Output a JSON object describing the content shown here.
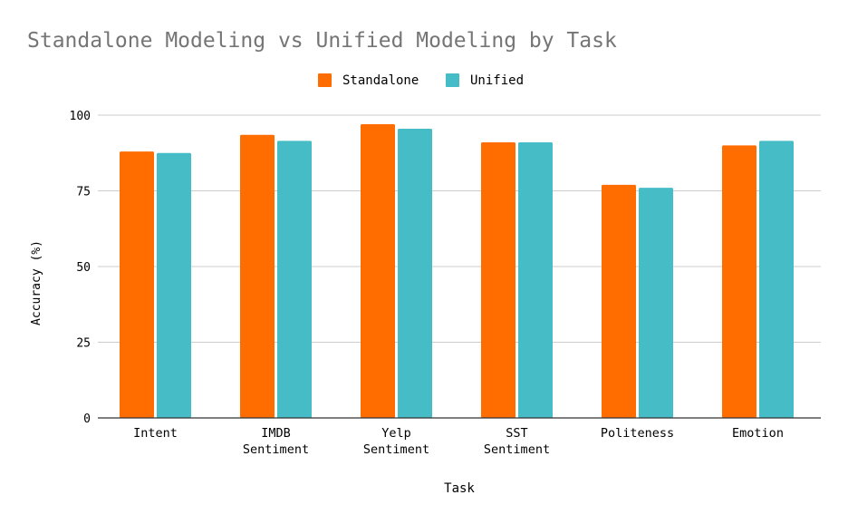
{
  "chart_data": {
    "type": "bar",
    "title": "Standalone Modeling vs Unified Modeling by Task",
    "xlabel": "Task",
    "ylabel": "Accuracy (%)",
    "ylim": [
      0,
      100
    ],
    "yticks": [
      "0",
      "25",
      "50",
      "75",
      "100"
    ],
    "grid": true,
    "legend_position": "top",
    "categories": [
      [
        "Intent"
      ],
      [
        "IMDB",
        "Sentiment"
      ],
      [
        "Yelp",
        "Sentiment"
      ],
      [
        "SST",
        "Sentiment"
      ],
      [
        "Politeness"
      ],
      [
        "Emotion"
      ]
    ],
    "series": [
      {
        "name": "Standalone",
        "color": "#ff6d01",
        "values": [
          88,
          93.5,
          97,
          91,
          77,
          90
        ]
      },
      {
        "name": "Unified",
        "color": "#46bdc6",
        "values": [
          87.5,
          91.5,
          95.5,
          91,
          76,
          91.5
        ]
      }
    ]
  }
}
